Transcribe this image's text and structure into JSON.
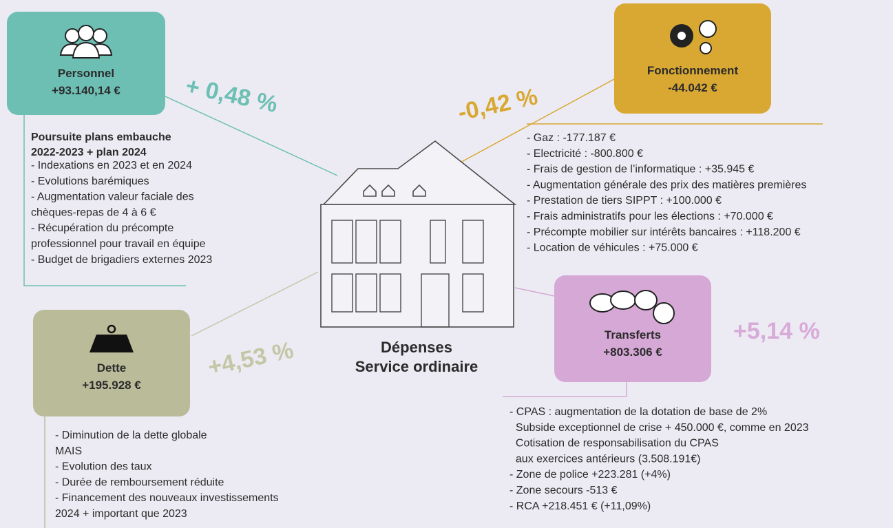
{
  "title": [
    "Dépenses",
    "Service ordinaire"
  ],
  "personnel": {
    "label": "Personnel",
    "amount": "+93.140,14 €",
    "change": "+ 0,48 %",
    "heading": [
      "Poursuite plans embauche",
      "2022-2023 + plan 2024"
    ],
    "items": [
      "- Indexations en 2023 et en 2024",
      "- Evolutions barémiques",
      "- Augmentation valeur faciale des",
      "chèques-repas de 4 à 6 €",
      "- Récupération du précompte",
      "professionnel pour travail en équipe",
      "- Budget de brigadiers externes 2023"
    ]
  },
  "fonctionnement": {
    "label": "Fonctionnement",
    "amount": "-44.042 €",
    "change": "-0,42 %",
    "items": [
      "- Gaz : -177.187 €",
      "- Electricité : -800.800 €",
      "- Frais de gestion de l’informatique : +35.945 €",
      "- Augmentation générale des prix des matières premières",
      "- Prestation de tiers SIPPT : +100.000 €",
      "- Frais administratifs pour les élections : +70.000 €",
      "- Précompte mobilier sur intérêts bancaires : +118.200 €",
      "- Location de véhicules : +75.000 €"
    ]
  },
  "dette": {
    "label": "Dette",
    "amount": "+195.928 €",
    "change": "+4,53 %",
    "items": [
      "- Diminution de la dette globale",
      "MAIS",
      "- Evolution des taux",
      "- Durée de remboursement réduite",
      "- Financement des nouveaux investissements",
      "2024 + important que 2023"
    ]
  },
  "transferts": {
    "label": "Transferts",
    "amount": "+803.306 €",
    "change": "+5,14 %",
    "items": [
      "- CPAS : augmentation de la dotation de base de 2%",
      "  Subside exceptionnel de crise + 450.000 €, comme en 2023",
      "  Cotisation de responsabilisation du CPAS",
      "  aux exercices antérieurs (3.508.191€)",
      "- Zone de police +223.281 (+4%)",
      "- Zone secours -513 €",
      "- RCA +218.451 € (+11,09%)"
    ]
  }
}
